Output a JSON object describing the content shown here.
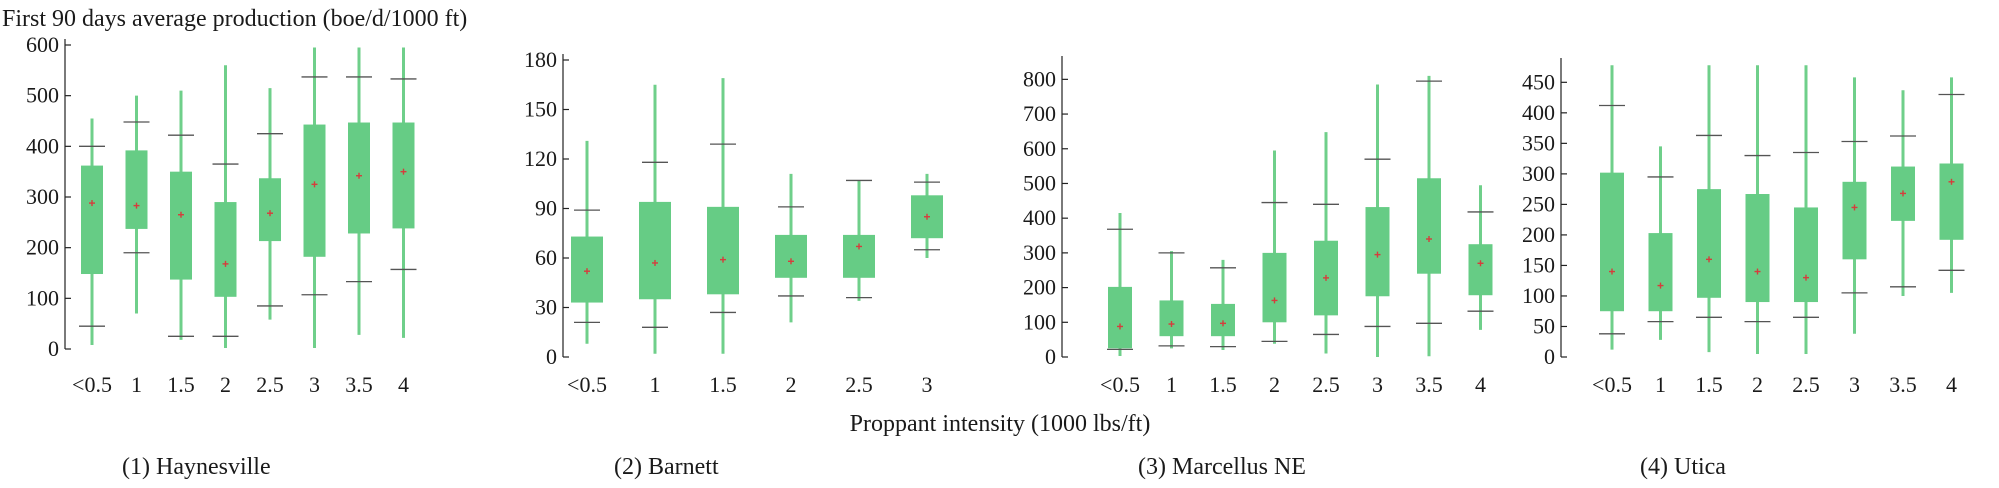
{
  "figure": {
    "ylabel": "First 90 days average production (boe/d/1000 ft)",
    "xlabel": "Proppant intensity (1000 lbs/ft)",
    "box_color": "#66cc85",
    "whisker_color": "#6fcf8a",
    "mean_marker_color": "#d63c3c",
    "cap_color": "#555555"
  },
  "chart_data": [
    {
      "type": "box",
      "caption": "(1) Haynesville",
      "ylim": [
        0,
        600
      ],
      "yticks": [
        0,
        100,
        200,
        300,
        400,
        500,
        600
      ],
      "categories": [
        "<0.5",
        "1",
        "1.5",
        "2",
        "2.5",
        "3",
        "3.5",
        "4"
      ],
      "boxes": [
        {
          "min": 8,
          "p10": 45,
          "q1": 148,
          "mean": 288,
          "q3": 362,
          "p90": 400,
          "max": 455
        },
        {
          "min": 70,
          "p10": 190,
          "q1": 237,
          "mean": 283,
          "q3": 392,
          "p90": 448,
          "max": 500
        },
        {
          "min": 18,
          "p10": 25,
          "q1": 137,
          "mean": 265,
          "q3": 350,
          "p90": 422,
          "max": 510
        },
        {
          "min": 2,
          "p10": 25,
          "q1": 103,
          "mean": 168,
          "q3": 290,
          "p90": 365,
          "max": 560
        },
        {
          "min": 58,
          "p10": 85,
          "q1": 213,
          "mean": 268,
          "q3": 337,
          "p90": 425,
          "max": 515
        },
        {
          "min": 2,
          "p10": 107,
          "q1": 182,
          "mean": 325,
          "q3": 443,
          "p90": 537,
          "max": 595
        },
        {
          "min": 28,
          "p10": 133,
          "q1": 228,
          "mean": 342,
          "q3": 447,
          "p90": 537,
          "max": 595
        },
        {
          "min": 22,
          "p10": 157,
          "q1": 238,
          "mean": 350,
          "q3": 447,
          "p90": 533,
          "max": 595
        }
      ]
    },
    {
      "type": "box",
      "caption": "(2) Barnett",
      "ylim": [
        0,
        180
      ],
      "yticks": [
        0,
        30,
        60,
        90,
        120,
        150,
        180
      ],
      "categories": [
        "<0.5",
        "1",
        "1.5",
        "2",
        "2.5",
        "3"
      ],
      "boxes": [
        {
          "min": 8,
          "p10": 21,
          "q1": 33,
          "mean": 52,
          "q3": 73,
          "p90": 89,
          "max": 131
        },
        {
          "min": 2,
          "p10": 18,
          "q1": 35,
          "mean": 57,
          "q3": 94,
          "p90": 118,
          "max": 165
        },
        {
          "min": 2,
          "p10": 27,
          "q1": 38,
          "mean": 59,
          "q3": 91,
          "p90": 129,
          "max": 169
        },
        {
          "min": 21,
          "p10": 37,
          "q1": 48,
          "mean": 58,
          "q3": 74,
          "p90": 91,
          "max": 111
        },
        {
          "min": 34,
          "p10": 36,
          "q1": 48,
          "mean": 67,
          "q3": 74,
          "p90": 107,
          "max": 107
        },
        {
          "min": 60,
          "p10": 65,
          "q1": 72,
          "mean": 85,
          "q3": 98,
          "p90": 106,
          "max": 111
        }
      ]
    },
    {
      "type": "box",
      "caption": "(3) Marcellus NE",
      "ylim": [
        0,
        850
      ],
      "yticks": [
        0,
        100,
        200,
        300,
        400,
        500,
        600,
        700,
        800
      ],
      "categories": [
        "<0.5",
        "1",
        "1.5",
        "2",
        "2.5",
        "3",
        "3.5",
        "4"
      ],
      "boxes": [
        {
          "min": 3,
          "p10": 22,
          "q1": 25,
          "mean": 88,
          "q3": 202,
          "p90": 368,
          "max": 415
        },
        {
          "min": 25,
          "p10": 32,
          "q1": 60,
          "mean": 95,
          "q3": 163,
          "p90": 300,
          "max": 305
        },
        {
          "min": 20,
          "p10": 30,
          "q1": 60,
          "mean": 97,
          "q3": 153,
          "p90": 257,
          "max": 280
        },
        {
          "min": 38,
          "p10": 45,
          "q1": 100,
          "mean": 163,
          "q3": 300,
          "p90": 445,
          "max": 595
        },
        {
          "min": 10,
          "p10": 65,
          "q1": 120,
          "mean": 228,
          "q3": 335,
          "p90": 440,
          "max": 648
        },
        {
          "min": 0,
          "p10": 88,
          "q1": 175,
          "mean": 295,
          "q3": 432,
          "p90": 570,
          "max": 785
        },
        {
          "min": 2,
          "p10": 97,
          "q1": 240,
          "mean": 340,
          "q3": 515,
          "p90": 795,
          "max": 810
        },
        {
          "min": 78,
          "p10": 132,
          "q1": 178,
          "mean": 270,
          "q3": 325,
          "p90": 418,
          "max": 495
        }
      ]
    },
    {
      "type": "box",
      "caption": "(4) Utica",
      "ylim": [
        0,
        480
      ],
      "yticks": [
        0,
        50,
        100,
        150,
        200,
        250,
        300,
        350,
        400,
        450
      ],
      "categories": [
        "<0.5",
        "1",
        "1.5",
        "2",
        "2.5",
        "3",
        "3.5",
        "4"
      ],
      "boxes": [
        {
          "min": 12,
          "p10": 38,
          "q1": 75,
          "mean": 140,
          "q3": 302,
          "p90": 412,
          "max": 478
        },
        {
          "min": 28,
          "p10": 58,
          "q1": 75,
          "mean": 117,
          "q3": 203,
          "p90": 295,
          "max": 345
        },
        {
          "min": 8,
          "p10": 65,
          "q1": 97,
          "mean": 160,
          "q3": 275,
          "p90": 363,
          "max": 478
        },
        {
          "min": 5,
          "p10": 58,
          "q1": 90,
          "mean": 140,
          "q3": 267,
          "p90": 330,
          "max": 478
        },
        {
          "min": 5,
          "p10": 65,
          "q1": 90,
          "mean": 130,
          "q3": 245,
          "p90": 335,
          "max": 478
        },
        {
          "min": 38,
          "p10": 105,
          "q1": 160,
          "mean": 245,
          "q3": 287,
          "p90": 353,
          "max": 458
        },
        {
          "min": 100,
          "p10": 115,
          "q1": 223,
          "mean": 268,
          "q3": 312,
          "p90": 362,
          "max": 437
        },
        {
          "min": 105,
          "p10": 142,
          "q1": 192,
          "mean": 287,
          "q3": 317,
          "p90": 430,
          "max": 458
        }
      ]
    }
  ]
}
